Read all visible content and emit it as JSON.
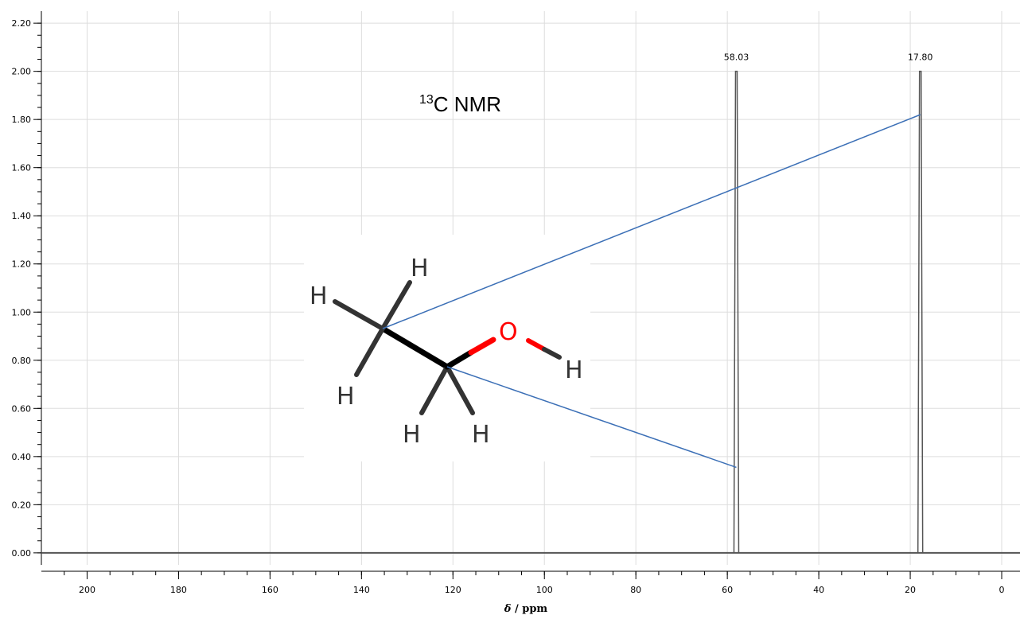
{
  "chart_data": {
    "type": "line",
    "title": "C NMR",
    "title_superscript": "13",
    "xlabel_symbol": "δ",
    "xlabel_unit": " / ppm",
    "xlim": [
      210,
      -4
    ],
    "ylim": [
      -0.05,
      2.25
    ],
    "x_ticks": [
      200,
      180,
      160,
      140,
      120,
      100,
      80,
      60,
      40,
      20,
      0
    ],
    "x_tick_labels": [
      "200",
      "180",
      "160",
      "140",
      "120",
      "100",
      "80",
      "60",
      "40",
      "20",
      "0"
    ],
    "y_ticks": [
      0,
      0.2,
      0.4,
      0.6,
      0.8,
      1.0,
      1.2,
      1.4,
      1.6,
      1.8,
      2.0,
      2.2
    ],
    "y_tick_labels": [
      "0.00",
      "0.20",
      "0.40",
      "0.60",
      "0.80",
      "1.00",
      "1.20",
      "1.40",
      "1.60",
      "1.80",
      "2.00",
      "2.20"
    ],
    "grid": true,
    "peaks": [
      {
        "shift": 58.03,
        "label": "58.03",
        "intensity": 2.0,
        "assigned_atom": "CH2 (C-O)"
      },
      {
        "shift": 17.8,
        "label": "17.80",
        "intensity": 2.0,
        "assigned_atom": "CH3"
      }
    ],
    "assignment_lines": [
      {
        "from_atom": "CH3",
        "to_shift": 17.8,
        "to_y": 1.82
      },
      {
        "from_atom": "CH2 (C-O)",
        "to_shift": 58.03,
        "to_y": 0.355
      }
    ],
    "colors": {
      "spectrum": "#555555",
      "grid": "#dddddd",
      "assignment": "#3b6fb6",
      "bond": "#000000",
      "oxygen": "#ff0000",
      "hydrogen": "#333333"
    }
  },
  "molecule": {
    "name": "ethanol",
    "atoms": [
      {
        "id": "H1",
        "label": "H"
      },
      {
        "id": "H2",
        "label": "H"
      },
      {
        "id": "H3",
        "label": "H"
      },
      {
        "id": "H4",
        "label": "H"
      },
      {
        "id": "H5",
        "label": "H"
      },
      {
        "id": "O",
        "label": "O"
      },
      {
        "id": "H6",
        "label": "H"
      }
    ]
  }
}
